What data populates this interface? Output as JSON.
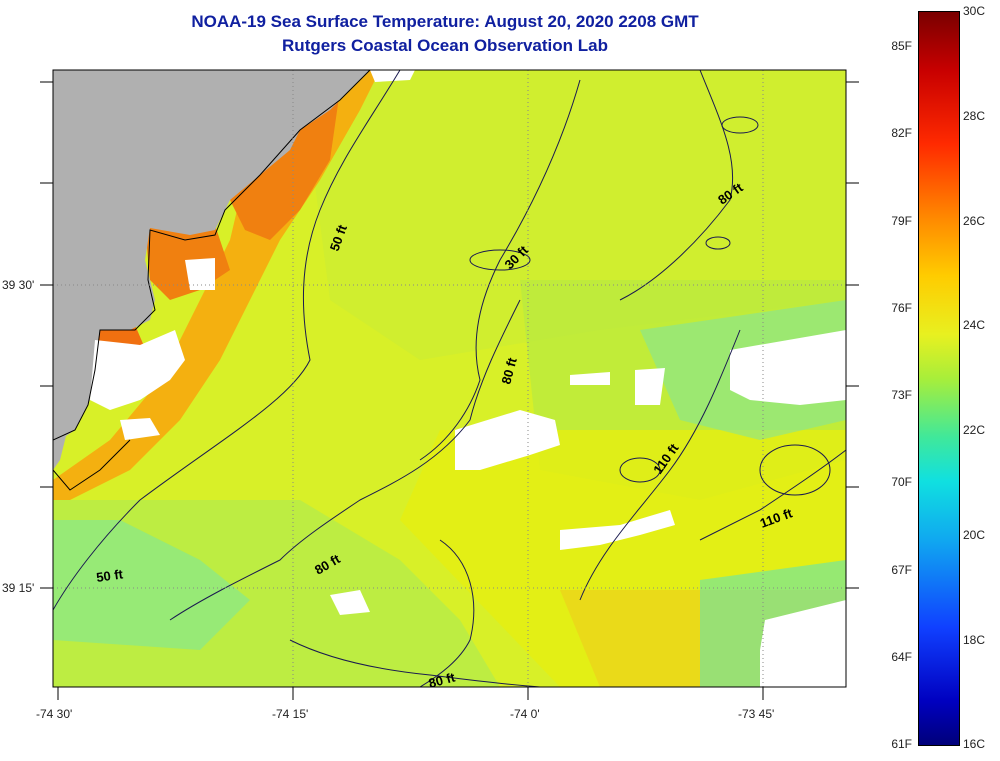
{
  "title": {
    "line1": "NOAA-19 Sea Surface Temperature:  August 20, 2020 2208 GMT",
    "line2": "Rutgers Coastal Ocean Observation Lab"
  },
  "map": {
    "lat_labels": [
      "39 30'",
      "39 15'"
    ],
    "lon_labels": [
      "-74 30'",
      "-74 15'",
      "-74 0'",
      "-73 45'"
    ],
    "contour_labels": [
      "50 ft",
      "30 ft",
      "80 ft",
      "80 ft",
      "110 ft",
      "110 ft",
      "80 ft",
      "50 ft",
      "80 ft"
    ],
    "colors": {
      "land": "#b0b0b0",
      "water_base": "#d6f02a",
      "cloud": "#ffffff",
      "warm_coast": "#f08010",
      "cool_water": "#60e8a8"
    }
  },
  "colorbar": {
    "fahrenheit_ticks": [
      "85F",
      "82F",
      "79F",
      "76F",
      "73F",
      "70F",
      "67F",
      "64F",
      "61F"
    ],
    "celsius_ticks": [
      "30C",
      "28C",
      "26C",
      "24C",
      "22C",
      "20C",
      "18C",
      "16C"
    ],
    "range_c": [
      16,
      30
    ]
  }
}
